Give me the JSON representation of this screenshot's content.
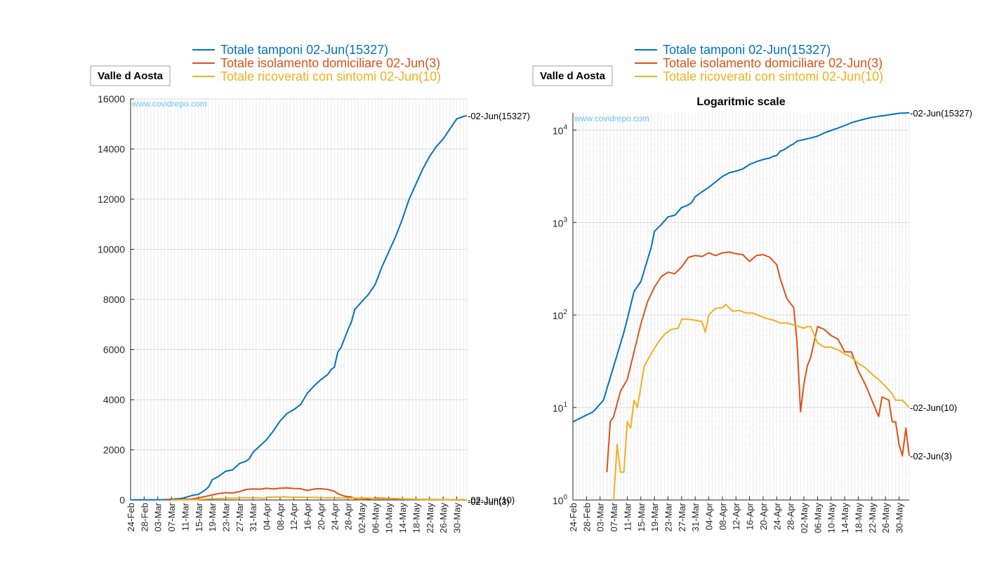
{
  "page": {
    "region_label": "Valle d Aosta",
    "watermark": "www.covidrepo.com"
  },
  "chart_data": [
    {
      "type": "line",
      "title": "",
      "xlabel": "",
      "ylabel": "",
      "y_scale": "linear",
      "ylim": [
        0,
        16000
      ],
      "yticks": [
        0,
        2000,
        4000,
        6000,
        8000,
        10000,
        12000,
        14000,
        16000
      ],
      "ytick_labels": [
        "0",
        "2000",
        "4000",
        "6000",
        "8000",
        "10000",
        "12000",
        "14000",
        "16000"
      ],
      "x_range": [
        "24-Feb",
        "02-Jun"
      ],
      "x_tick_labels": [
        "24-Feb",
        "28-Feb",
        "03-Mar",
        "07-Mar",
        "11-Mar",
        "15-Mar",
        "19-Mar",
        "23-Mar",
        "27-Mar",
        "31-Mar",
        "04-Apr",
        "08-Apr",
        "12-Apr",
        "16-Apr",
        "20-Apr",
        "24-Apr",
        "28-Apr",
        "02-May",
        "06-May",
        "10-May",
        "14-May",
        "18-May",
        "22-May",
        "26-May",
        "30-May"
      ],
      "grid": true,
      "legend_position": "top",
      "series": [
        {
          "name": "Totale tamponi 02-Jun(15327)",
          "color": "#0072bd",
          "end_label": "02-Jun(15327)",
          "points": [
            [
              "24-Feb",
              7
            ],
            [
              "01-Mar",
              9
            ],
            [
              "04-Mar",
              12
            ],
            [
              "07-Mar",
              28
            ],
            [
              "10-Mar",
              65
            ],
            [
              "11-Mar",
              90
            ],
            [
              "13-Mar",
              180
            ],
            [
              "15-Mar",
              230
            ],
            [
              "17-Mar",
              400
            ],
            [
              "18-Mar",
              530
            ],
            [
              "19-Mar",
              800
            ],
            [
              "21-Mar",
              950
            ],
            [
              "23-Mar",
              1150
            ],
            [
              "25-Mar",
              1200
            ],
            [
              "27-Mar",
              1450
            ],
            [
              "29-Mar",
              1550
            ],
            [
              "30-Mar",
              1650
            ],
            [
              "31-Mar",
              1900
            ],
            [
              "02-Apr",
              2150
            ],
            [
              "04-Apr",
              2400
            ],
            [
              "06-Apr",
              2750
            ],
            [
              "08-Apr",
              3150
            ],
            [
              "10-Apr",
              3450
            ],
            [
              "12-Apr",
              3600
            ],
            [
              "14-Apr",
              3800
            ],
            [
              "16-Apr",
              4250
            ],
            [
              "18-Apr",
              4550
            ],
            [
              "20-Apr",
              4800
            ],
            [
              "22-Apr",
              5000
            ],
            [
              "23-Apr",
              5200
            ],
            [
              "24-Apr",
              5300
            ],
            [
              "25-Apr",
              5900
            ],
            [
              "26-Apr",
              6100
            ],
            [
              "28-Apr",
              6800
            ],
            [
              "29-Apr",
              7100
            ],
            [
              "30-Apr",
              7600
            ],
            [
              "02-May",
              7900
            ],
            [
              "04-May",
              8200
            ],
            [
              "06-May",
              8600
            ],
            [
              "08-May",
              9300
            ],
            [
              "10-May",
              9900
            ],
            [
              "12-May",
              10500
            ],
            [
              "14-May",
              11200
            ],
            [
              "16-May",
              12000
            ],
            [
              "18-May",
              12600
            ],
            [
              "20-May",
              13200
            ],
            [
              "22-May",
              13700
            ],
            [
              "24-May",
              14100
            ],
            [
              "26-May",
              14400
            ],
            [
              "28-May",
              14800
            ],
            [
              "30-May",
              15200
            ],
            [
              "01-Jun",
              15300
            ],
            [
              "02-Jun",
              15327
            ]
          ]
        },
        {
          "name": "Totale isolamento domiciliare 02-Jun(3)",
          "color": "#d95319",
          "end_label": "02-Jun(3)",
          "points": [
            [
              "05-Mar",
              2
            ],
            [
              "06-Mar",
              7
            ],
            [
              "07-Mar",
              8
            ],
            [
              "09-Mar",
              15
            ],
            [
              "11-Mar",
              20
            ],
            [
              "13-Mar",
              40
            ],
            [
              "15-Mar",
              80
            ],
            [
              "17-Mar",
              140
            ],
            [
              "19-Mar",
              200
            ],
            [
              "21-Mar",
              260
            ],
            [
              "23-Mar",
              290
            ],
            [
              "25-Mar",
              280
            ],
            [
              "27-Mar",
              330
            ],
            [
              "29-Mar",
              420
            ],
            [
              "31-Mar",
              440
            ],
            [
              "02-Apr",
              430
            ],
            [
              "04-Apr",
              470
            ],
            [
              "06-Apr",
              440
            ],
            [
              "08-Apr",
              470
            ],
            [
              "10-Apr",
              480
            ],
            [
              "12-Apr",
              460
            ],
            [
              "14-Apr",
              450
            ],
            [
              "16-Apr",
              380
            ],
            [
              "18-Apr",
              440
            ],
            [
              "20-Apr",
              450
            ],
            [
              "22-Apr",
              420
            ],
            [
              "24-Apr",
              350
            ],
            [
              "25-Apr",
              250
            ],
            [
              "27-Apr",
              150
            ],
            [
              "29-Apr",
              120
            ],
            [
              "30-Apr",
              50
            ],
            [
              "01-May",
              9
            ],
            [
              "02-May",
              18
            ],
            [
              "03-May",
              28
            ],
            [
              "04-May",
              35
            ],
            [
              "06-May",
              75
            ],
            [
              "08-May",
              70
            ],
            [
              "10-May",
              60
            ],
            [
              "12-May",
              55
            ],
            [
              "14-May",
              40
            ],
            [
              "16-May",
              40
            ],
            [
              "18-May",
              25
            ],
            [
              "20-May",
              18
            ],
            [
              "22-May",
              12
            ],
            [
              "24-May",
              8
            ],
            [
              "25-May",
              13
            ],
            [
              "27-May",
              12
            ],
            [
              "28-May",
              7
            ],
            [
              "29-May",
              7
            ],
            [
              "30-May",
              4
            ],
            [
              "31-May",
              3
            ],
            [
              "01-Jun",
              6
            ],
            [
              "02-Jun",
              3
            ]
          ]
        },
        {
          "name": "Totale ricoverati con sintomi 02-Jun(10)",
          "color": "#edb120",
          "end_label": "02-Jun(10)",
          "points": [
            [
              "07-Mar",
              1
            ],
            [
              "08-Mar",
              4
            ],
            [
              "09-Mar",
              2
            ],
            [
              "10-Mar",
              2
            ],
            [
              "11-Mar",
              7
            ],
            [
              "12-Mar",
              6
            ],
            [
              "13-Mar",
              12
            ],
            [
              "14-Mar",
              10
            ],
            [
              "16-Mar",
              28
            ],
            [
              "18-Mar",
              38
            ],
            [
              "20-Mar",
              50
            ],
            [
              "22-Mar",
              62
            ],
            [
              "24-Mar",
              70
            ],
            [
              "26-Mar",
              72
            ],
            [
              "27-Mar",
              90
            ],
            [
              "29-Mar",
              90
            ],
            [
              "31-Mar",
              88
            ],
            [
              "02-Apr",
              85
            ],
            [
              "03-Apr",
              65
            ],
            [
              "04-Apr",
              100
            ],
            [
              "06-Apr",
              118
            ],
            [
              "08-Apr",
              120
            ],
            [
              "09-Apr",
              130
            ],
            [
              "11-Apr",
              110
            ],
            [
              "13-Apr",
              112
            ],
            [
              "15-Apr",
              105
            ],
            [
              "17-Apr",
              105
            ],
            [
              "19-Apr",
              98
            ],
            [
              "21-Apr",
              92
            ],
            [
              "23-Apr",
              88
            ],
            [
              "25-Apr",
              82
            ],
            [
              "27-Apr",
              82
            ],
            [
              "29-Apr",
              78
            ],
            [
              "02-May",
              72
            ],
            [
              "03-May",
              75
            ],
            [
              "04-May",
              75
            ],
            [
              "06-May",
              50
            ],
            [
              "08-May",
              45
            ],
            [
              "10-May",
              45
            ],
            [
              "12-May",
              42
            ],
            [
              "14-May",
              38
            ],
            [
              "16-May",
              35
            ],
            [
              "18-May",
              30
            ],
            [
              "20-May",
              27
            ],
            [
              "22-May",
              23
            ],
            [
              "24-May",
              20
            ],
            [
              "26-May",
              17
            ],
            [
              "28-May",
              14
            ],
            [
              "29-May",
              12
            ],
            [
              "31-May",
              12
            ],
            [
              "02-Jun",
              10
            ]
          ]
        }
      ]
    },
    {
      "type": "line",
      "title": "Logaritmic scale",
      "xlabel": "",
      "ylabel": "",
      "y_scale": "log",
      "ylim": [
        1,
        15327
      ],
      "ytick_labels": [
        "10^0",
        "10^1",
        "10^2",
        "10^3",
        "10^4"
      ],
      "x_range": [
        "24-Feb",
        "02-Jun"
      ],
      "x_tick_labels": [
        "24-Feb",
        "28-Feb",
        "03-Mar",
        "07-Mar",
        "11-Mar",
        "15-Mar",
        "19-Mar",
        "23-Mar",
        "27-Mar",
        "31-Mar",
        "04-Apr",
        "08-Apr",
        "12-Apr",
        "16-Apr",
        "20-Apr",
        "24-Apr",
        "28-Apr",
        "02-May",
        "06-May",
        "10-May",
        "14-May",
        "18-May",
        "22-May",
        "26-May",
        "30-May"
      ],
      "grid": true,
      "legend_position": "top",
      "series_same_as_left_chart": true
    }
  ]
}
